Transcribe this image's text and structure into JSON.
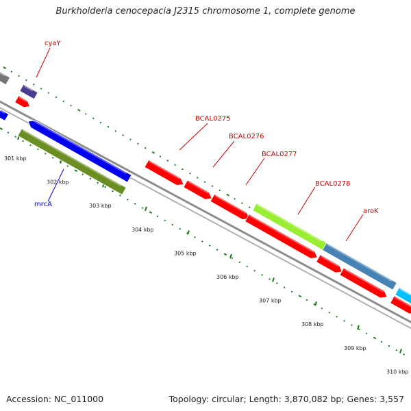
{
  "title": "Burkholderia cenocepacia J2315 chromosome 1, complete genome",
  "footer": {
    "accession": "Accession: NC_011000",
    "stats": "Topology: circular; Length: 3,870,082 bp; Genes: 3,557"
  },
  "colors": {
    "backbone": "#8c8c8c",
    "tick_dots": "#1a7a1a",
    "label_red": "#cc0000",
    "label_blue": "#0000cc"
  },
  "scale": {
    "tick_labels": [
      "301 kbp",
      "302 kbp",
      "303 kbp",
      "304 kbp",
      "305 kbp",
      "306 kbp",
      "307 kbp",
      "308 kbp",
      "309 kbp",
      "310 kbp"
    ]
  },
  "genes": [
    {
      "label": "cyaY",
      "label_color": "#cc0000",
      "color": "#ff0000",
      "track": "outer"
    },
    {
      "label": "mrcA",
      "label_color": "#0000cc",
      "color": "#0000ee",
      "track": "inner"
    },
    {
      "label": "BCAL0275",
      "label_color": "#cc0000",
      "color": "#ff0000",
      "track": "outer"
    },
    {
      "label": "BCAL0276",
      "label_color": "#cc0000",
      "color": "#ff0000",
      "track": "outer"
    },
    {
      "label": "BCAL0277",
      "label_color": "#cc0000",
      "color": "#ff0000",
      "track": "outer"
    },
    {
      "label": "BCAL0278",
      "label_color": "#cc0000",
      "color": "#99ee33",
      "track": "outer"
    },
    {
      "label": "aroK",
      "label_color": "#cc0000",
      "color": "#4682b4",
      "track": "outer"
    }
  ]
}
